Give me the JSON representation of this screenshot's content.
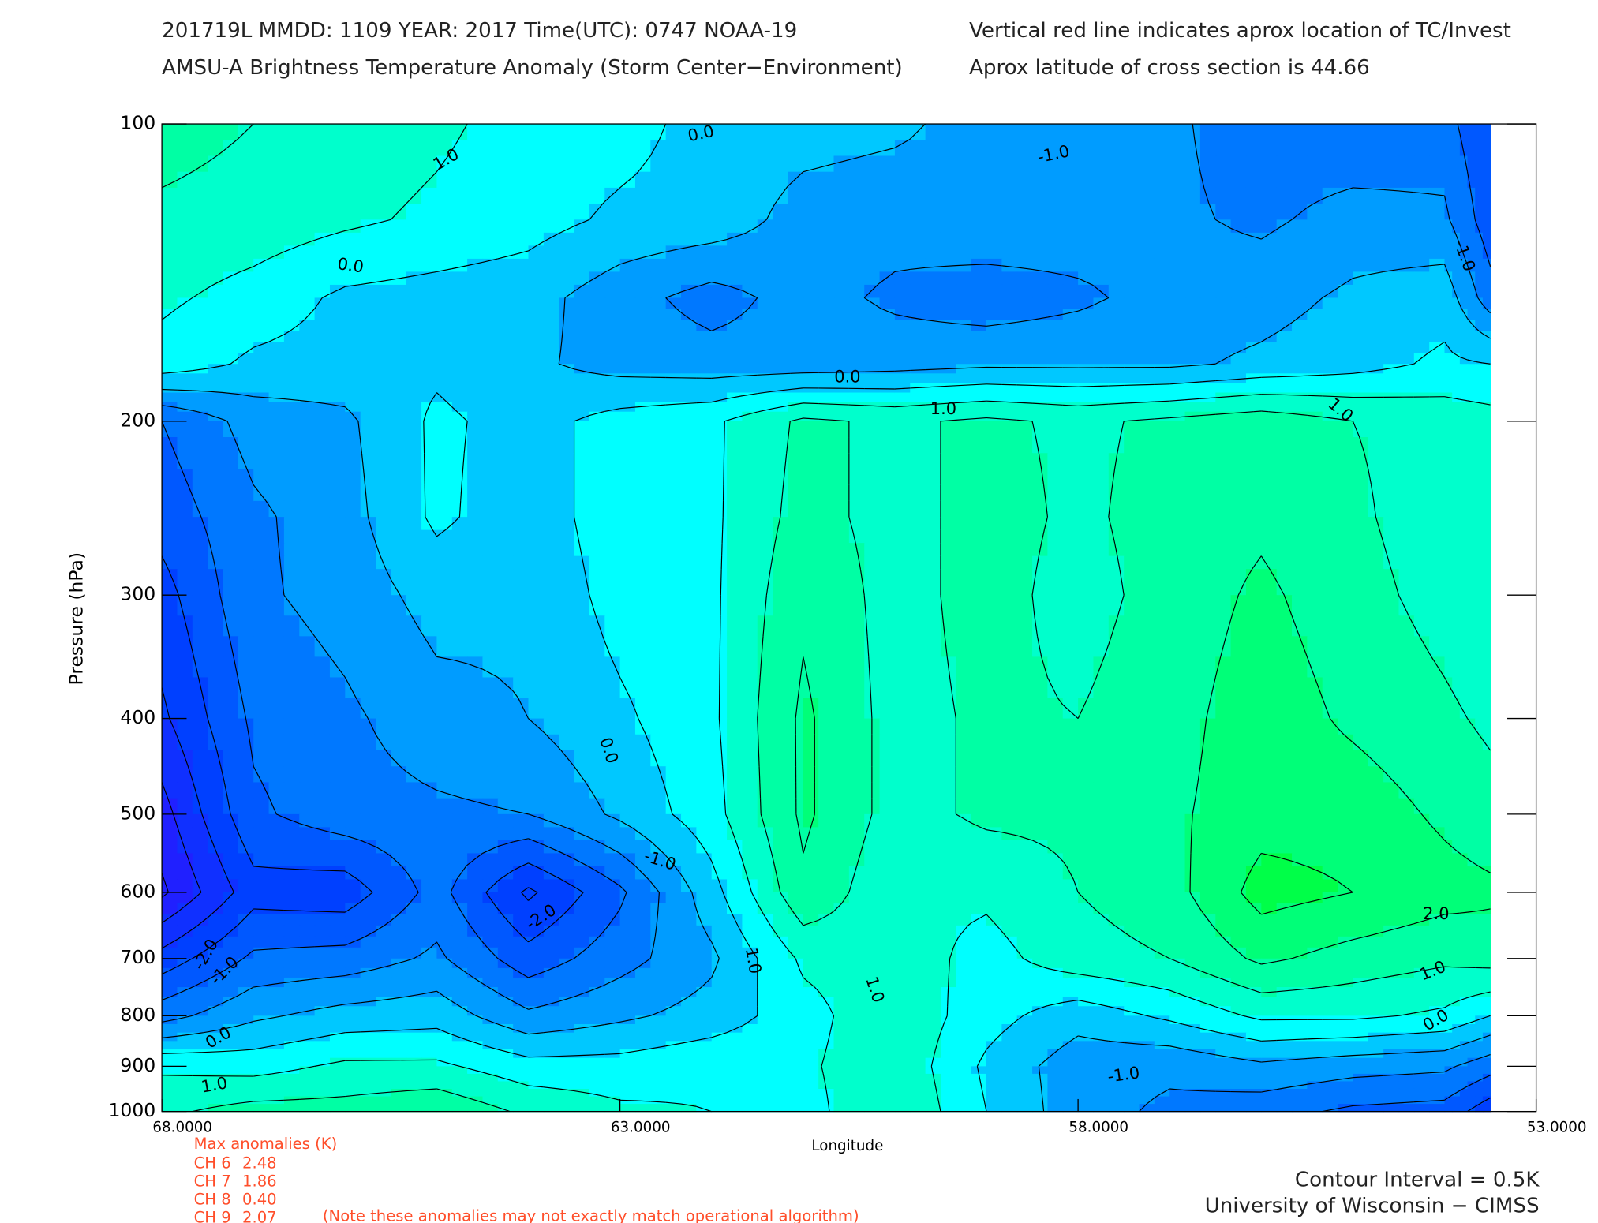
{
  "chart_data": {
    "type": "contour",
    "title": "201719L  MMDD: 1109 YEAR: 2017 Time(UTC): 0747 NOAA-19",
    "subtitle": "AMSU-A Brightness Temperature Anomaly (Storm Center−Environment)",
    "annotations": [
      "Vertical red line indicates aprox location of TC/Invest",
      "Aprox latitude of cross section is 44.66"
    ],
    "x_label": "Longitude",
    "y_label": "Pressure (hPa)",
    "x": [
      68,
      67,
      66,
      65,
      64,
      63,
      62,
      61,
      60,
      59,
      58,
      57,
      56,
      55,
      54,
      53.5
    ],
    "y": [
      100,
      125,
      150,
      175,
      200,
      250,
      300,
      400,
      500,
      600,
      700,
      800,
      900,
      1000
    ],
    "z": [
      [
        1.2,
        1.0,
        0.8,
        0.6,
        0.3,
        0.2,
        -0.2,
        -0.3,
        -0.4,
        -0.7,
        -0.8,
        -0.9,
        -1.3,
        -1.4,
        -1.3,
        -2.0
      ],
      [
        0.9,
        0.8,
        0.6,
        0.4,
        0.2,
        -0.1,
        -0.2,
        -0.7,
        -0.8,
        -0.6,
        -0.7,
        -0.9,
        -1.1,
        -0.8,
        -0.9,
        -1.8
      ],
      [
        0.6,
        0.3,
        -0.1,
        -0.2,
        -0.3,
        -0.8,
        -1.2,
        -0.8,
        -1.1,
        -1.3,
        -1.1,
        -0.8,
        -0.7,
        -0.4,
        -0.2,
        -1.3
      ],
      [
        0.3,
        -0.1,
        -0.2,
        -0.1,
        -0.4,
        -0.7,
        -0.8,
        -0.8,
        -0.7,
        -0.6,
        -0.6,
        -0.6,
        -0.4,
        -0.2,
        0.1,
        0.0
      ],
      [
        -1.5,
        -0.8,
        -0.6,
        0.1,
        -0.2,
        0.2,
        0.4,
        1.1,
        0.9,
        1.1,
        0.9,
        1.1,
        1.3,
        1.0,
        0.8,
        0.7
      ],
      [
        -1.8,
        -1.1,
        -0.7,
        0.1,
        -0.3,
        0.3,
        0.4,
        1.2,
        0.8,
        1.2,
        0.9,
        1.2,
        1.4,
        1.1,
        0.7,
        0.7
      ],
      [
        -2.2,
        -1.1,
        -0.8,
        -0.3,
        -0.4,
        0.2,
        0.4,
        1.4,
        0.8,
        1.2,
        0.8,
        1.2,
        1.6,
        1.2,
        0.8,
        0.6
      ],
      [
        -2.6,
        -1.4,
        -1.1,
        -0.7,
        -0.5,
        -0.1,
        0.4,
        1.6,
        0.8,
        1.1,
        1.0,
        1.3,
        1.8,
        1.4,
        1.1,
        0.9
      ],
      [
        -3.2,
        -1.6,
        -1.2,
        -1.1,
        -1.0,
        -0.4,
        0.3,
        1.6,
        0.8,
        1.1,
        1.1,
        1.4,
        1.8,
        1.8,
        1.4,
        1.2
      ],
      [
        -3.6,
        -2.2,
        -2.3,
        -1.3,
        -2.6,
        -1.6,
        -0.2,
        1.4,
        0.6,
        0.6,
        1.0,
        1.3,
        2.2,
        2.0,
        1.7,
        1.6
      ],
      [
        -2.3,
        -1.4,
        -1.3,
        -0.9,
        -1.8,
        -1.2,
        -0.6,
        0.6,
        0.8,
        0.3,
        0.8,
        1.0,
        1.6,
        1.3,
        1.1,
        1.2
      ],
      [
        -1.2,
        -0.6,
        -0.3,
        -0.2,
        -0.9,
        -0.6,
        -0.3,
        0.3,
        0.9,
        0.2,
        -0.3,
        0.1,
        0.6,
        0.6,
        0.4,
        0.0
      ],
      [
        0.4,
        0.3,
        0.6,
        0.6,
        0.2,
        0.2,
        0.4,
        0.4,
        0.9,
        -0.1,
        -0.8,
        -0.9,
        -0.6,
        -0.8,
        -0.9,
        -1.3
      ],
      [
        0.9,
        1.2,
        1.2,
        1.4,
        0.9,
        0.6,
        0.5,
        0.3,
        1.0,
        0.0,
        -0.8,
        -1.1,
        -1.3,
        -1.6,
        -1.7,
        -2.3
      ]
    ],
    "xlim": [
      68,
      53
    ],
    "ylim": [
      1000,
      100
    ],
    "y_log": true,
    "xticks": [
      {
        "value": 68,
        "label": "68.0000"
      },
      {
        "value": 63,
        "label": "63.0000"
      },
      {
        "value": 58,
        "label": "58.0000"
      },
      {
        "value": 53,
        "label": "53.0000"
      }
    ],
    "yticks": [
      100,
      200,
      300,
      400,
      500,
      600,
      700,
      800,
      900,
      1000
    ],
    "levels": [
      -4,
      -3.5,
      -3,
      -2.5,
      -2,
      -1.5,
      -1,
      -0.5,
      0,
      0.5,
      1,
      1.5,
      2,
      2.5
    ],
    "colors": [
      "#3010e0",
      "#2020ff",
      "#1030ff",
      "#0040ff",
      "#0058ff",
      "#0078ff",
      "#009cff",
      "#00c8ff",
      "#00ffff",
      "#00ffcc",
      "#00ffa4",
      "#00ff78",
      "#00ff48",
      "#30ff00"
    ],
    "contour_labels": [
      "1.0",
      "0.0",
      "-1.0",
      "-1.0",
      "0.0",
      "0.0",
      "1.0",
      "1.0",
      "0.0",
      "-1.0",
      "-2.0",
      "-2.0",
      "-1.0",
      "1.0",
      "1.0",
      "2.0",
      "1.0",
      "0.0",
      "-1.0",
      "0.0",
      "1.0"
    ],
    "max_anomalies": {
      "title": "Max anomalies (K)",
      "rows": [
        [
          "CH 6",
          "2.48"
        ],
        [
          "CH 7",
          "1.86"
        ],
        [
          "CH 8",
          "0.40"
        ],
        [
          "CH 9",
          "2.07"
        ]
      ],
      "note": "(Note these anomalies may not exactly match operational algorithm)"
    },
    "footer": [
      "Contour Interval = 0.5K",
      "University of Wisconsin − CIMSS"
    ]
  }
}
